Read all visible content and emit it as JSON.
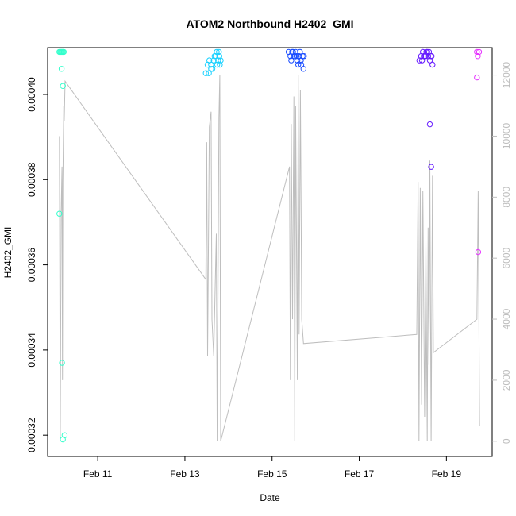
{
  "chart_data": {
    "type": "scatter",
    "title": "ATOM2 Northbound H2402_GMI",
    "xlabel": "Date",
    "ylabel": "H2402_GMI",
    "x_ticks": [
      "Feb 11",
      "Feb 13",
      "Feb 15",
      "Feb 17",
      "Feb 19"
    ],
    "x_tick_values": [
      11.0,
      13.0,
      15.0,
      17.0,
      19.0
    ],
    "xlim": [
      9.85,
      20.05
    ],
    "ylim": [
      0.000315,
      0.000411
    ],
    "y_ticks": [
      "0.00032",
      "0.00034",
      "0.00036",
      "0.00038",
      "0.00040"
    ],
    "y_tick_values": [
      0.00032,
      0.00034,
      0.00036,
      0.00038,
      0.0004
    ],
    "y2lim": [
      -500,
      12900
    ],
    "y2_ticks": [
      "0",
      "2000",
      "4000",
      "6000",
      "8000",
      "10000",
      "12000"
    ],
    "y2_tick_values": [
      0,
      2000,
      4000,
      6000,
      8000,
      10000,
      12000
    ],
    "y2_color": "#bebebe",
    "grid": false,
    "series": [
      {
        "color": "#33ffcc",
        "marker": "open-circle",
        "points": [
          [
            10.12,
            0.00041
          ],
          [
            10.14,
            0.00041
          ],
          [
            10.16,
            0.00041
          ],
          [
            10.18,
            0.00041
          ],
          [
            10.2,
            0.00041
          ],
          [
            10.22,
            0.00041
          ],
          [
            10.17,
            0.000406
          ],
          [
            10.2,
            0.000402
          ],
          [
            10.12,
            0.000372
          ],
          [
            10.18,
            0.000337
          ],
          [
            10.24,
            0.00032
          ],
          [
            10.2,
            0.000319
          ]
        ]
      },
      {
        "color": "#1ad1ff",
        "marker": "open-circle",
        "points": [
          [
            13.48,
            0.000405
          ],
          [
            13.52,
            0.000407
          ],
          [
            13.56,
            0.000408
          ],
          [
            13.6,
            0.000407
          ],
          [
            13.63,
            0.000406
          ],
          [
            13.66,
            0.000408
          ],
          [
            13.7,
            0.000409
          ],
          [
            13.73,
            0.00041
          ],
          [
            13.76,
            0.000408
          ],
          [
            13.78,
            0.00041
          ],
          [
            13.8,
            0.000407
          ],
          [
            13.82,
            0.000408
          ],
          [
            13.55,
            0.000405
          ],
          [
            13.6,
            0.000406
          ],
          [
            13.68,
            0.000409
          ],
          [
            13.74,
            0.000407
          ],
          [
            13.79,
            0.000409
          ]
        ]
      },
      {
        "color": "#1a4dff",
        "marker": "open-circle",
        "points": [
          [
            15.38,
            0.00041
          ],
          [
            15.42,
            0.000409
          ],
          [
            15.46,
            0.00041
          ],
          [
            15.5,
            0.000409
          ],
          [
            15.54,
            0.00041
          ],
          [
            15.58,
            0.000408
          ],
          [
            15.62,
            0.000409
          ],
          [
            15.66,
            0.000408
          ],
          [
            15.7,
            0.000409
          ],
          [
            15.72,
            0.000406
          ],
          [
            15.44,
            0.000408
          ],
          [
            15.52,
            0.000409
          ],
          [
            15.6,
            0.000407
          ],
          [
            15.67,
            0.000407
          ],
          [
            15.73,
            0.000409
          ],
          [
            15.48,
            0.00041
          ],
          [
            15.56,
            0.000409
          ],
          [
            15.64,
            0.00041
          ]
        ]
      },
      {
        "color": "#661aff",
        "marker": "open-circle",
        "points": [
          [
            18.38,
            0.000408
          ],
          [
            18.42,
            0.000409
          ],
          [
            18.46,
            0.00041
          ],
          [
            18.5,
            0.000409
          ],
          [
            18.54,
            0.00041
          ],
          [
            18.58,
            0.000409
          ],
          [
            18.62,
            0.000408
          ],
          [
            18.66,
            0.000409
          ],
          [
            18.68,
            0.000407
          ],
          [
            18.44,
            0.000408
          ],
          [
            18.52,
            0.000409
          ],
          [
            18.6,
            0.00041
          ],
          [
            18.64,
            0.000409
          ],
          [
            18.48,
            0.000409
          ],
          [
            18.56,
            0.00041
          ],
          [
            18.62,
            0.000393
          ],
          [
            18.65,
            0.000383
          ]
        ]
      },
      {
        "color": "#e633ff",
        "marker": "open-circle",
        "points": [
          [
            19.7,
            0.00041
          ],
          [
            19.75,
            0.00041
          ],
          [
            19.72,
            0.000409
          ],
          [
            19.7,
            0.000404
          ],
          [
            19.73,
            0.000363
          ]
        ]
      }
    ],
    "secondary_series": {
      "color": "#bebebe",
      "style": "line",
      "axis": "right",
      "points": [
        [
          10.12,
          10000
        ],
        [
          10.14,
          0
        ],
        [
          10.16,
          7500
        ],
        [
          10.18,
          9000
        ],
        [
          10.19,
          2000
        ],
        [
          10.2,
          8500
        ],
        [
          10.22,
          11000
        ],
        [
          10.23,
          10500
        ],
        [
          10.25,
          11800
        ],
        [
          13.48,
          5300
        ],
        [
          13.5,
          9800
        ],
        [
          13.52,
          2800
        ],
        [
          13.56,
          10300
        ],
        [
          13.6,
          10800
        ],
        [
          13.62,
          4000
        ],
        [
          13.66,
          2800
        ],
        [
          13.72,
          6800
        ],
        [
          13.74,
          0
        ],
        [
          13.78,
          10600
        ],
        [
          13.8,
          12000
        ],
        [
          13.82,
          0
        ],
        [
          15.4,
          9000
        ],
        [
          15.42,
          2000
        ],
        [
          15.44,
          10400
        ],
        [
          15.47,
          4000
        ],
        [
          15.5,
          11300
        ],
        [
          15.52,
          0
        ],
        [
          15.54,
          11000
        ],
        [
          15.58,
          2000
        ],
        [
          15.6,
          12000
        ],
        [
          15.62,
          3500
        ],
        [
          15.65,
          11500
        ],
        [
          15.68,
          4000
        ],
        [
          15.72,
          3200
        ],
        [
          18.32,
          3500
        ],
        [
          18.35,
          8500
        ],
        [
          18.37,
          0
        ],
        [
          18.4,
          8300
        ],
        [
          18.43,
          1200
        ],
        [
          18.46,
          8200
        ],
        [
          18.5,
          800
        ],
        [
          18.53,
          6600
        ],
        [
          18.56,
          0
        ],
        [
          18.58,
          7000
        ],
        [
          18.6,
          2500
        ],
        [
          18.62,
          9200
        ],
        [
          18.65,
          0
        ],
        [
          18.68,
          8700
        ],
        [
          18.7,
          2900
        ],
        [
          19.7,
          4000
        ],
        [
          19.73,
          8200
        ],
        [
          19.76,
          500
        ]
      ]
    }
  }
}
